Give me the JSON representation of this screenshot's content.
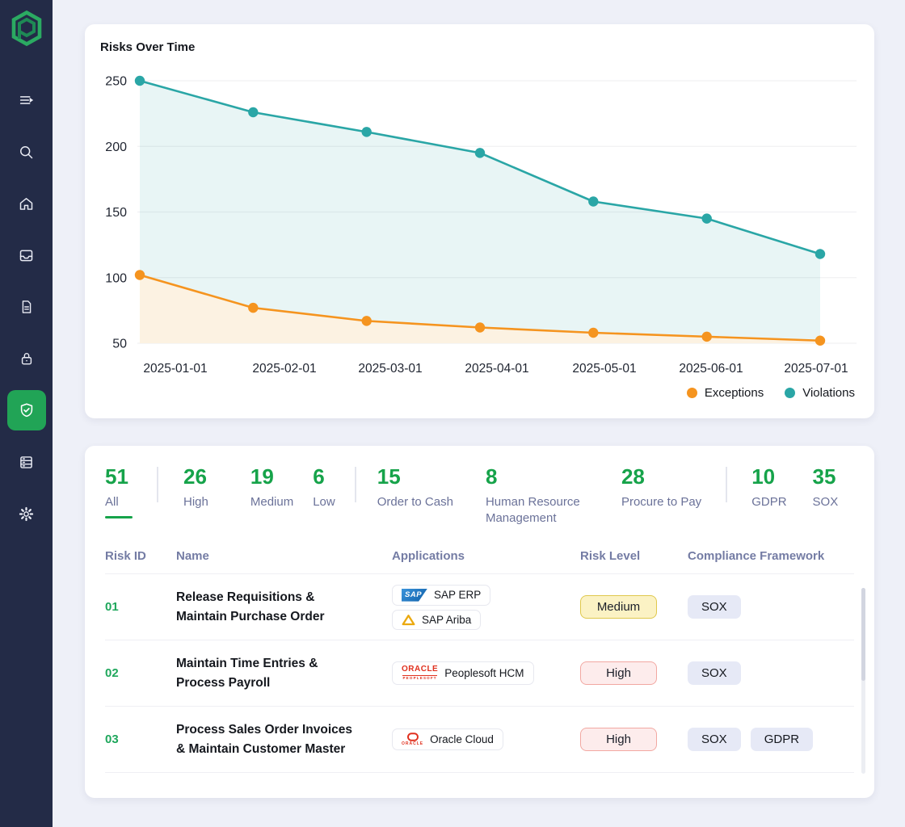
{
  "app": {
    "background": "#EEF0F8",
    "sidebar_color": "#232B47",
    "accent_green": "#1FA75C"
  },
  "sidebar": {
    "logo": "pathlock-logo",
    "items": [
      {
        "icon": "menu-expand-icon",
        "active": false
      },
      {
        "icon": "search-icon",
        "active": false
      },
      {
        "icon": "home-icon",
        "active": false
      },
      {
        "icon": "inbox-icon",
        "active": false
      },
      {
        "icon": "document-icon",
        "active": false
      },
      {
        "icon": "lock-icon",
        "active": false
      },
      {
        "icon": "shield-check-icon",
        "active": true
      },
      {
        "icon": "server-icon",
        "active": false
      },
      {
        "icon": "settings-icon",
        "active": false
      }
    ]
  },
  "chart_card": {
    "title": "Risks Over Time",
    "legend": [
      {
        "label": "Exceptions",
        "color": "#F5941F"
      },
      {
        "label": "Violations",
        "color": "#2AA6A6"
      }
    ]
  },
  "chart_data": {
    "type": "line",
    "title": "Risks Over Time",
    "x": [
      "2025-01-01",
      "2025-02-01",
      "2025-03-01",
      "2025-04-01",
      "2025-05-01",
      "2025-06-01",
      "2025-07-01"
    ],
    "series": [
      {
        "name": "Exceptions",
        "color": "#F5941F",
        "area_fill": "#FCF2E2",
        "values": [
          102,
          77,
          67,
          62,
          58,
          55,
          52
        ]
      },
      {
        "name": "Violations",
        "color": "#2AA6A6",
        "area_fill": "rgba(42,166,166,0.11)",
        "values": [
          250,
          226,
          211,
          195,
          158,
          145,
          118
        ]
      }
    ],
    "xlabel": "",
    "ylabel": "",
    "ylim": [
      50,
      250
    ],
    "yticks": [
      50,
      100,
      150,
      200,
      250
    ],
    "grid": true,
    "legend_position": "bottom-right"
  },
  "stats_bar": {
    "items": [
      {
        "value": "51",
        "label": "All",
        "active": true
      },
      {
        "value": "26",
        "label": "High",
        "active": false
      },
      {
        "value": "19",
        "label": "Medium",
        "active": false
      },
      {
        "value": "6",
        "label": "Low",
        "active": false
      },
      {
        "value": "15",
        "label": "Order to Cash",
        "active": false
      },
      {
        "value": "8",
        "label": "Human Resource Management",
        "active": false
      },
      {
        "value": "28",
        "label": "Procure to Pay",
        "active": false
      },
      {
        "value": "10",
        "label": "GDPR",
        "active": false
      },
      {
        "value": "35",
        "label": "SOX",
        "active": false
      }
    ],
    "dividers_after": [
      0,
      3,
      6
    ]
  },
  "table": {
    "columns": [
      "Risk ID",
      "Name",
      "Applications",
      "Risk Level",
      "Compliance Framework"
    ],
    "risk_level_styles": {
      "Medium": {
        "bg": "#FBF2C4",
        "border": "#DFC84D"
      },
      "High": {
        "bg": "#FDECEC",
        "border": "#F2A8A2"
      }
    },
    "framework_chip_bg": "#E6E9F6",
    "rows": [
      {
        "id": "01",
        "name": "Release Requisitions & Maintain Purchase Order",
        "applications": [
          {
            "label": "SAP ERP",
            "logo": "sap-logo"
          },
          {
            "label": "SAP Ariba",
            "logo": "sap-ariba-logo"
          }
        ],
        "risk_level": "Medium",
        "frameworks": [
          "SOX"
        ]
      },
      {
        "id": "02",
        "name": "Maintain Time Entries & Process Payroll",
        "applications": [
          {
            "label": "Peoplesoft HCM",
            "logo": "oracle-peoplesoft-logo"
          }
        ],
        "risk_level": "High",
        "frameworks": [
          "SOX"
        ]
      },
      {
        "id": "03",
        "name": "Process Sales Order Invoices & Maintain Customer Master",
        "applications": [
          {
            "label": "Oracle Cloud",
            "logo": "oracle-cloud-logo"
          }
        ],
        "risk_level": "High",
        "frameworks": [
          "SOX",
          "GDPR"
        ]
      }
    ]
  }
}
